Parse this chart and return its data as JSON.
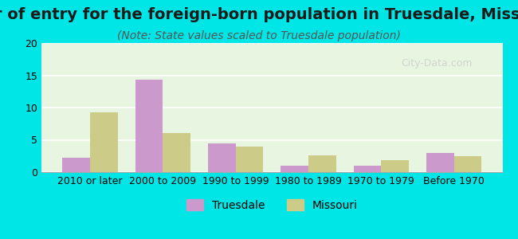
{
  "title": "Year of entry for the foreign-born population in Truesdale, Missouri",
  "subtitle": "(Note: State values scaled to Truesdale population)",
  "categories": [
    "2010 or later",
    "2000 to 2009",
    "1990 to 1999",
    "1980 to 1989",
    "1970 to 1979",
    "Before 1970"
  ],
  "truesdale_values": [
    2.2,
    14.3,
    4.4,
    1.0,
    1.0,
    3.0
  ],
  "missouri_values": [
    9.3,
    6.0,
    4.0,
    2.6,
    1.8,
    2.5
  ],
  "truesdale_color": "#cc99cc",
  "missouri_color": "#cccc88",
  "ylim": [
    0,
    20
  ],
  "yticks": [
    0,
    5,
    10,
    15,
    20
  ],
  "background_outer": "#00e5e5",
  "background_inner_top": "#e8f5e0",
  "background_inner_bottom": "#f0f8ff",
  "grid_color": "#ffffff",
  "bar_width": 0.38,
  "title_fontsize": 14,
  "subtitle_fontsize": 10,
  "legend_fontsize": 10,
  "tick_fontsize": 9
}
